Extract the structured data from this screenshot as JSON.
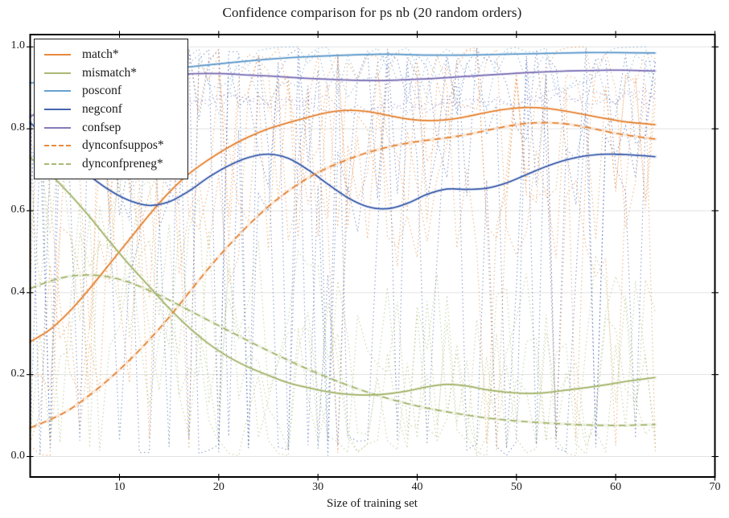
{
  "chart_data": {
    "type": "line",
    "title": "Confidence comparison for ps nb (20 random orders)",
    "xlabel": "Size of training set",
    "ylabel": "",
    "xlim": [
      1,
      70
    ],
    "ylim": [
      -0.05,
      1.03
    ],
    "xticks": [
      10,
      20,
      30,
      40,
      50,
      60,
      70
    ],
    "xtick_labels": [
      "10",
      "20",
      "30",
      "40",
      "50",
      "60",
      "70"
    ],
    "yticks": [
      0.0,
      0.2,
      0.4,
      0.6,
      0.8,
      1.0
    ],
    "ytick_labels": [
      "0.0",
      "0.2",
      "0.4",
      "0.6",
      "0.8",
      "1.0"
    ],
    "grid": {
      "axis": "y",
      "color": "#e3e3e3"
    },
    "frame_color": "#000000",
    "legend_position": "upper-left",
    "series": [
      {
        "name": "match",
        "label": "match*",
        "color": "#E78A3E",
        "dash": "solid",
        "points": [
          [
            1,
            0.28
          ],
          [
            3,
            0.31
          ],
          [
            5,
            0.355
          ],
          [
            7,
            0.41
          ],
          [
            9,
            0.47
          ],
          [
            11,
            0.53
          ],
          [
            13,
            0.59
          ],
          [
            15,
            0.645
          ],
          [
            17,
            0.69
          ],
          [
            19,
            0.725
          ],
          [
            21,
            0.755
          ],
          [
            23,
            0.78
          ],
          [
            25,
            0.8
          ],
          [
            27,
            0.815
          ],
          [
            29,
            0.828
          ],
          [
            31,
            0.84
          ],
          [
            33,
            0.845
          ],
          [
            35,
            0.842
          ],
          [
            37,
            0.833
          ],
          [
            39,
            0.824
          ],
          [
            41,
            0.82
          ],
          [
            43,
            0.822
          ],
          [
            45,
            0.83
          ],
          [
            47,
            0.84
          ],
          [
            49,
            0.848
          ],
          [
            51,
            0.852
          ],
          [
            53,
            0.85
          ],
          [
            55,
            0.843
          ],
          [
            57,
            0.834
          ],
          [
            59,
            0.825
          ],
          [
            61,
            0.817
          ],
          [
            64,
            0.81
          ]
        ]
      },
      {
        "name": "mismatch",
        "label": "mismatch*",
        "color": "#A9B973",
        "dash": "solid",
        "points": [
          [
            1,
            0.73
          ],
          [
            3,
            0.69
          ],
          [
            5,
            0.64
          ],
          [
            7,
            0.585
          ],
          [
            9,
            0.525
          ],
          [
            11,
            0.468
          ],
          [
            13,
            0.415
          ],
          [
            15,
            0.362
          ],
          [
            17,
            0.315
          ],
          [
            19,
            0.275
          ],
          [
            21,
            0.243
          ],
          [
            23,
            0.218
          ],
          [
            25,
            0.198
          ],
          [
            27,
            0.18
          ],
          [
            29,
            0.168
          ],
          [
            31,
            0.158
          ],
          [
            33,
            0.152
          ],
          [
            35,
            0.15
          ],
          [
            37,
            0.153
          ],
          [
            39,
            0.16
          ],
          [
            41,
            0.17
          ],
          [
            43,
            0.176
          ],
          [
            45,
            0.172
          ],
          [
            47,
            0.163
          ],
          [
            49,
            0.157
          ],
          [
            51,
            0.154
          ],
          [
            53,
            0.156
          ],
          [
            55,
            0.162
          ],
          [
            57,
            0.168
          ],
          [
            59,
            0.175
          ],
          [
            61,
            0.183
          ],
          [
            64,
            0.193
          ]
        ]
      },
      {
        "name": "posconf",
        "label": "posconf",
        "color": "#69A0CF",
        "dash": "solid",
        "points": [
          [
            1,
            0.912
          ],
          [
            5,
            0.92
          ],
          [
            9,
            0.93
          ],
          [
            13,
            0.941
          ],
          [
            17,
            0.951
          ],
          [
            21,
            0.961
          ],
          [
            25,
            0.97
          ],
          [
            29,
            0.976
          ],
          [
            33,
            0.98
          ],
          [
            37,
            0.982
          ],
          [
            41,
            0.98
          ],
          [
            45,
            0.98
          ],
          [
            49,
            0.982
          ],
          [
            53,
            0.984
          ],
          [
            57,
            0.986
          ],
          [
            60,
            0.986
          ],
          [
            64,
            0.985
          ]
        ]
      },
      {
        "name": "negconf",
        "label": "negconf",
        "color": "#4565B0",
        "dash": "solid",
        "points": [
          [
            1,
            0.815
          ],
          [
            3,
            0.77
          ],
          [
            5,
            0.725
          ],
          [
            7,
            0.685
          ],
          [
            9,
            0.65
          ],
          [
            11,
            0.625
          ],
          [
            13,
            0.613
          ],
          [
            15,
            0.622
          ],
          [
            17,
            0.648
          ],
          [
            19,
            0.682
          ],
          [
            21,
            0.71
          ],
          [
            23,
            0.73
          ],
          [
            25,
            0.738
          ],
          [
            27,
            0.728
          ],
          [
            29,
            0.7
          ],
          [
            31,
            0.665
          ],
          [
            33,
            0.632
          ],
          [
            35,
            0.61
          ],
          [
            37,
            0.605
          ],
          [
            39,
            0.618
          ],
          [
            41,
            0.64
          ],
          [
            43,
            0.653
          ],
          [
            45,
            0.652
          ],
          [
            47,
            0.655
          ],
          [
            49,
            0.668
          ],
          [
            51,
            0.688
          ],
          [
            53,
            0.708
          ],
          [
            55,
            0.724
          ],
          [
            57,
            0.734
          ],
          [
            59,
            0.738
          ],
          [
            61,
            0.737
          ],
          [
            64,
            0.732
          ]
        ]
      },
      {
        "name": "confsep",
        "label": "confsep",
        "color": "#8579BB",
        "dash": "solid",
        "points": [
          [
            1,
            0.83
          ],
          [
            3,
            0.855
          ],
          [
            5,
            0.878
          ],
          [
            7,
            0.897
          ],
          [
            9,
            0.911
          ],
          [
            11,
            0.921
          ],
          [
            13,
            0.928
          ],
          [
            15,
            0.932
          ],
          [
            17,
            0.934
          ],
          [
            19,
            0.935
          ],
          [
            21,
            0.934
          ],
          [
            23,
            0.931
          ],
          [
            25,
            0.929
          ],
          [
            27,
            0.926
          ],
          [
            29,
            0.923
          ],
          [
            31,
            0.921
          ],
          [
            33,
            0.919
          ],
          [
            35,
            0.918
          ],
          [
            37,
            0.918
          ],
          [
            39,
            0.92
          ],
          [
            41,
            0.922
          ],
          [
            43,
            0.925
          ],
          [
            45,
            0.928
          ],
          [
            47,
            0.931
          ],
          [
            49,
            0.934
          ],
          [
            51,
            0.937
          ],
          [
            53,
            0.939
          ],
          [
            55,
            0.941
          ],
          [
            57,
            0.942
          ],
          [
            59,
            0.943
          ],
          [
            61,
            0.943
          ],
          [
            64,
            0.941
          ]
        ]
      },
      {
        "name": "dynconfsuppos",
        "label": "dynconfsuppos*",
        "color": "#E78A3E",
        "dash": "dashed",
        "points": [
          [
            1,
            0.07
          ],
          [
            3,
            0.09
          ],
          [
            5,
            0.115
          ],
          [
            7,
            0.15
          ],
          [
            9,
            0.19
          ],
          [
            11,
            0.235
          ],
          [
            13,
            0.285
          ],
          [
            15,
            0.34
          ],
          [
            17,
            0.4
          ],
          [
            19,
            0.46
          ],
          [
            21,
            0.515
          ],
          [
            23,
            0.565
          ],
          [
            25,
            0.61
          ],
          [
            27,
            0.648
          ],
          [
            29,
            0.68
          ],
          [
            31,
            0.705
          ],
          [
            33,
            0.725
          ],
          [
            35,
            0.742
          ],
          [
            37,
            0.755
          ],
          [
            39,
            0.765
          ],
          [
            41,
            0.772
          ],
          [
            43,
            0.778
          ],
          [
            45,
            0.786
          ],
          [
            47,
            0.796
          ],
          [
            49,
            0.806
          ],
          [
            51,
            0.813
          ],
          [
            53,
            0.815
          ],
          [
            55,
            0.812
          ],
          [
            57,
            0.804
          ],
          [
            59,
            0.794
          ],
          [
            61,
            0.785
          ],
          [
            64,
            0.775
          ]
        ]
      },
      {
        "name": "dynconfpreneg",
        "label": "dynconfpreneg*",
        "color": "#A9B973",
        "dash": "dashed",
        "points": [
          [
            1,
            0.41
          ],
          [
            3,
            0.428
          ],
          [
            5,
            0.44
          ],
          [
            7,
            0.443
          ],
          [
            9,
            0.438
          ],
          [
            11,
            0.425
          ],
          [
            13,
            0.405
          ],
          [
            15,
            0.382
          ],
          [
            17,
            0.357
          ],
          [
            19,
            0.332
          ],
          [
            21,
            0.307
          ],
          [
            23,
            0.282
          ],
          [
            25,
            0.258
          ],
          [
            27,
            0.235
          ],
          [
            29,
            0.213
          ],
          [
            31,
            0.193
          ],
          [
            33,
            0.174
          ],
          [
            35,
            0.157
          ],
          [
            37,
            0.142
          ],
          [
            39,
            0.129
          ],
          [
            41,
            0.118
          ],
          [
            43,
            0.109
          ],
          [
            45,
            0.101
          ],
          [
            47,
            0.094
          ],
          [
            49,
            0.089
          ],
          [
            51,
            0.085
          ],
          [
            53,
            0.082
          ],
          [
            55,
            0.079
          ],
          [
            57,
            0.077
          ],
          [
            59,
            0.076
          ],
          [
            61,
            0.076
          ],
          [
            64,
            0.078
          ]
        ]
      }
    ],
    "noise_runs": {
      "note": "faint dotted lines depicting individual runs across 20 random orders (values unreadable; procedurally approximated around each smooth curve)",
      "x_start": 1,
      "x_end": 64,
      "specs": [
        {
          "name": "match-runs",
          "base": "match",
          "color": "#E78A3E",
          "count": 4,
          "seed": 11,
          "amp": 0.42,
          "spike_low": 0.06,
          "spike_high": 0.06,
          "offset": 0,
          "min": 0,
          "max": 1
        },
        {
          "name": "mismatch-runs",
          "base": "mismatch",
          "color": "#A9B973",
          "count": 4,
          "seed": 23,
          "amp": 0.38,
          "spike_low": 0.1,
          "spike_high": 0.0,
          "offset": 0,
          "min": 0,
          "max": 1
        },
        {
          "name": "negconf-runs",
          "base": "negconf",
          "color": "#4565B0",
          "count": 3,
          "seed": 37,
          "amp": 0.28,
          "spike_low": 0.2,
          "spike_high": 0.24,
          "offset": 0.1,
          "min": 0,
          "max": 1
        },
        {
          "name": "posconf-runs",
          "base": "posconf",
          "color": "#69A0CF",
          "count": 2,
          "seed": 49,
          "amp": 0.14,
          "spike_low": 0.0,
          "spike_high": 0.0,
          "offset": -0.01,
          "min": 0.62,
          "max": 1
        },
        {
          "name": "confsep-runs",
          "base": "confsep",
          "color": "#9488C6",
          "count": 2,
          "seed": 61,
          "amp": 0.025,
          "spike_low": 0,
          "spike_high": 0,
          "offset": -0.065,
          "min": 0.8,
          "max": 0.92
        }
      ]
    }
  }
}
